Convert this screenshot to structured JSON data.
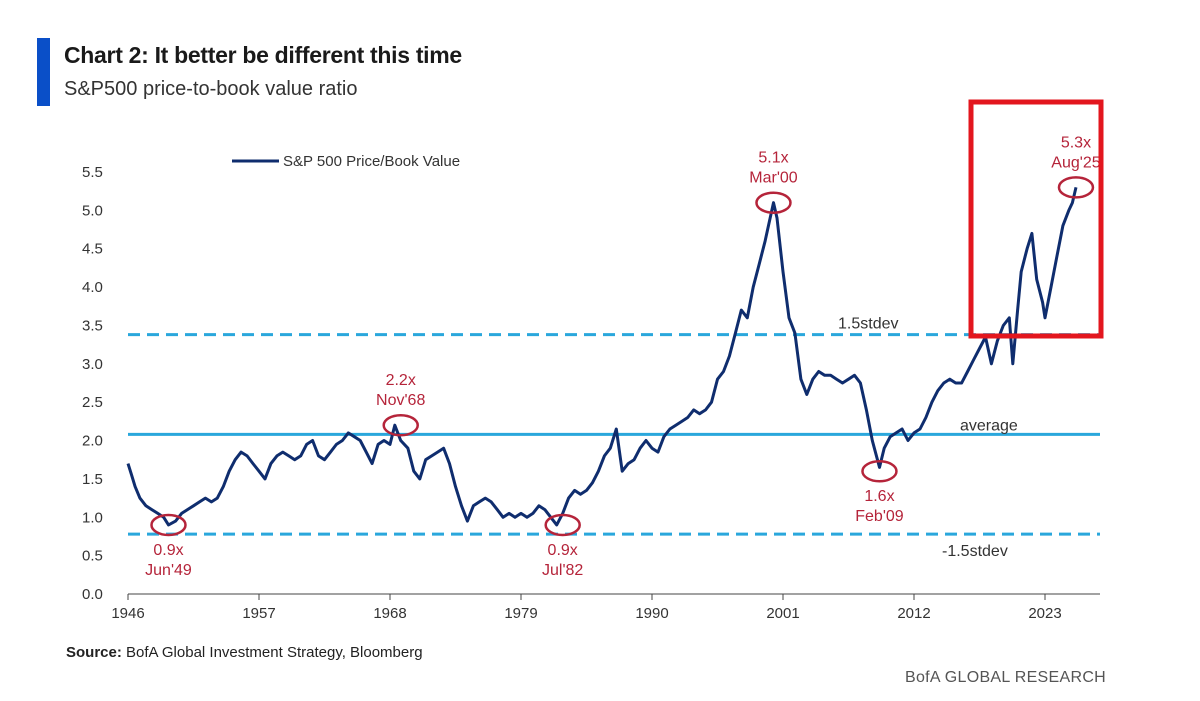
{
  "header": {
    "title": "Chart 2: It better be different this time",
    "subtitle": "S&P500 price-to-book value ratio"
  },
  "footer": {
    "source_label": "Source:",
    "source_text": "BofA Global Investment Strategy, Bloomberg",
    "brand": "BofA GLOBAL RESEARCH"
  },
  "colors": {
    "series": "#0f2d6e",
    "average": "#2aa7dc",
    "stdev": "#2aa7dc",
    "annotation": "#b5243a",
    "highlight": "#e3161e",
    "title_bar": "#0a4fc8"
  },
  "chart_data": {
    "type": "line",
    "title": "Chart 2: It better be different this time",
    "subtitle": "S&P500 price-to-book value ratio",
    "xlabel": "",
    "ylabel": "",
    "xlim": [
      1946,
      2030
    ],
    "ylim": [
      0,
      5.5
    ],
    "xticks": [
      1946,
      1957,
      1968,
      1979,
      1990,
      2001,
      2012,
      2023
    ],
    "yticks": [
      0.0,
      0.5,
      1.0,
      1.5,
      2.0,
      2.5,
      3.0,
      3.5,
      4.0,
      4.5,
      5.0,
      5.5
    ],
    "grid": false,
    "legend": {
      "position": "top-left",
      "entries": [
        "S&P 500 Price/Book Value"
      ]
    },
    "series": [
      {
        "name": "S&P 500 Price/Book Value",
        "x": [
          1946.0,
          1946.3,
          1946.6,
          1947.0,
          1947.5,
          1948.0,
          1948.5,
          1949.0,
          1949.4,
          1950.0,
          1950.5,
          1951.0,
          1951.5,
          1952.0,
          1952.5,
          1953.0,
          1953.5,
          1954.0,
          1954.5,
          1955.0,
          1955.5,
          1956.0,
          1956.5,
          1957.0,
          1957.5,
          1958.0,
          1958.5,
          1959.0,
          1959.5,
          1960.0,
          1960.5,
          1961.0,
          1961.5,
          1962.0,
          1962.5,
          1963.0,
          1963.5,
          1964.0,
          1964.5,
          1965.0,
          1965.5,
          1966.0,
          1966.5,
          1967.0,
          1967.5,
          1968.0,
          1968.4,
          1968.9,
          1969.5,
          1970.0,
          1970.5,
          1971.0,
          1971.5,
          1972.0,
          1972.5,
          1973.0,
          1973.5,
          1974.0,
          1974.5,
          1975.0,
          1975.5,
          1976.0,
          1976.5,
          1977.0,
          1977.5,
          1978.0,
          1978.5,
          1979.0,
          1979.5,
          1980.0,
          1980.5,
          1981.0,
          1981.5,
          1982.0,
          1982.5,
          1983.0,
          1983.5,
          1984.0,
          1984.5,
          1985.0,
          1985.5,
          1986.0,
          1986.5,
          1987.0,
          1987.5,
          1988.0,
          1988.5,
          1989.0,
          1989.5,
          1990.0,
          1990.5,
          1991.0,
          1991.5,
          1992.0,
          1992.5,
          1993.0,
          1993.5,
          1994.0,
          1994.5,
          1995.0,
          1995.5,
          1996.0,
          1996.5,
          1997.0,
          1997.5,
          1998.0,
          1998.5,
          1999.0,
          1999.5,
          2000.2,
          2000.5,
          2001.0,
          2001.5,
          2002.0,
          2002.5,
          2003.0,
          2003.5,
          2004.0,
          2004.5,
          2005.0,
          2005.5,
          2006.0,
          2006.5,
          2007.0,
          2007.5,
          2008.0,
          2008.5,
          2009.1,
          2009.5,
          2010.0,
          2010.5,
          2011.0,
          2011.5,
          2012.0,
          2012.5,
          2013.0,
          2013.5,
          2014.0,
          2014.5,
          2015.0,
          2015.5,
          2016.0,
          2016.5,
          2017.0,
          2017.5,
          2018.0,
          2018.5,
          2019.0,
          2019.5,
          2020.0,
          2020.3,
          2020.7,
          2021.0,
          2021.5,
          2021.9,
          2022.3,
          2022.8,
          2023.0,
          2023.5,
          2024.0,
          2024.5,
          2025.0,
          2025.3,
          2025.6
        ],
        "values": [
          1.7,
          1.55,
          1.4,
          1.25,
          1.15,
          1.1,
          1.05,
          1.0,
          0.9,
          0.95,
          1.05,
          1.1,
          1.15,
          1.2,
          1.25,
          1.2,
          1.25,
          1.4,
          1.6,
          1.75,
          1.85,
          1.8,
          1.7,
          1.6,
          1.5,
          1.7,
          1.8,
          1.85,
          1.8,
          1.75,
          1.8,
          1.95,
          2.0,
          1.8,
          1.75,
          1.85,
          1.95,
          2.0,
          2.1,
          2.05,
          2.0,
          1.85,
          1.7,
          1.95,
          2.0,
          1.95,
          2.2,
          2.0,
          1.9,
          1.6,
          1.5,
          1.75,
          1.8,
          1.85,
          1.9,
          1.7,
          1.4,
          1.15,
          0.95,
          1.15,
          1.2,
          1.25,
          1.2,
          1.1,
          1.0,
          1.05,
          1.0,
          1.05,
          1.0,
          1.05,
          1.15,
          1.1,
          1.0,
          0.9,
          1.05,
          1.25,
          1.35,
          1.3,
          1.35,
          1.45,
          1.6,
          1.8,
          1.9,
          2.15,
          1.6,
          1.7,
          1.75,
          1.9,
          2.0,
          1.9,
          1.85,
          2.05,
          2.15,
          2.2,
          2.25,
          2.3,
          2.4,
          2.35,
          2.4,
          2.5,
          2.8,
          2.9,
          3.1,
          3.4,
          3.7,
          3.6,
          4.0,
          4.3,
          4.6,
          5.1,
          4.9,
          4.2,
          3.6,
          3.4,
          2.8,
          2.6,
          2.8,
          2.9,
          2.85,
          2.85,
          2.8,
          2.75,
          2.8,
          2.85,
          2.75,
          2.4,
          2.0,
          1.65,
          1.9,
          2.05,
          2.1,
          2.15,
          2.0,
          2.1,
          2.15,
          2.3,
          2.5,
          2.65,
          2.75,
          2.8,
          2.75,
          2.75,
          2.9,
          3.05,
          3.2,
          3.35,
          3.0,
          3.3,
          3.5,
          3.6,
          3.0,
          3.7,
          4.2,
          4.5,
          4.7,
          4.1,
          3.8,
          3.6,
          4.0,
          4.4,
          4.8,
          5.0,
          5.1,
          5.3
        ]
      }
    ],
    "reference_lines": [
      {
        "label": "1.5stdev",
        "y": 3.38,
        "style": "dashed"
      },
      {
        "label": "average",
        "y": 2.08,
        "style": "solid"
      },
      {
        "label": "-1.5stdev",
        "y": 0.78,
        "style": "dashed"
      }
    ],
    "annotations": [
      {
        "x": 1949.4,
        "y": 0.9,
        "value_label": "0.9x",
        "date_label": "Jun'49",
        "label_side": "below"
      },
      {
        "x": 1968.9,
        "y": 2.2,
        "value_label": "2.2x",
        "date_label": "Nov'68",
        "label_side": "above"
      },
      {
        "x": 1982.5,
        "y": 0.9,
        "value_label": "0.9x",
        "date_label": "Jul'82",
        "label_side": "below"
      },
      {
        "x": 2000.2,
        "y": 5.1,
        "value_label": "5.1x",
        "date_label": "Mar'00",
        "label_side": "above"
      },
      {
        "x": 2009.1,
        "y": 1.6,
        "value_label": "1.6x",
        "date_label": "Feb'09",
        "label_side": "below"
      },
      {
        "x": 2025.6,
        "y": 5.3,
        "value_label": "5.3x",
        "date_label": "Aug'25",
        "label_side": "above"
      }
    ],
    "highlight_box": {
      "x_from": 2018.0,
      "x_to": 2030.0,
      "y_from": 3.4,
      "y_to": 6.5
    }
  }
}
